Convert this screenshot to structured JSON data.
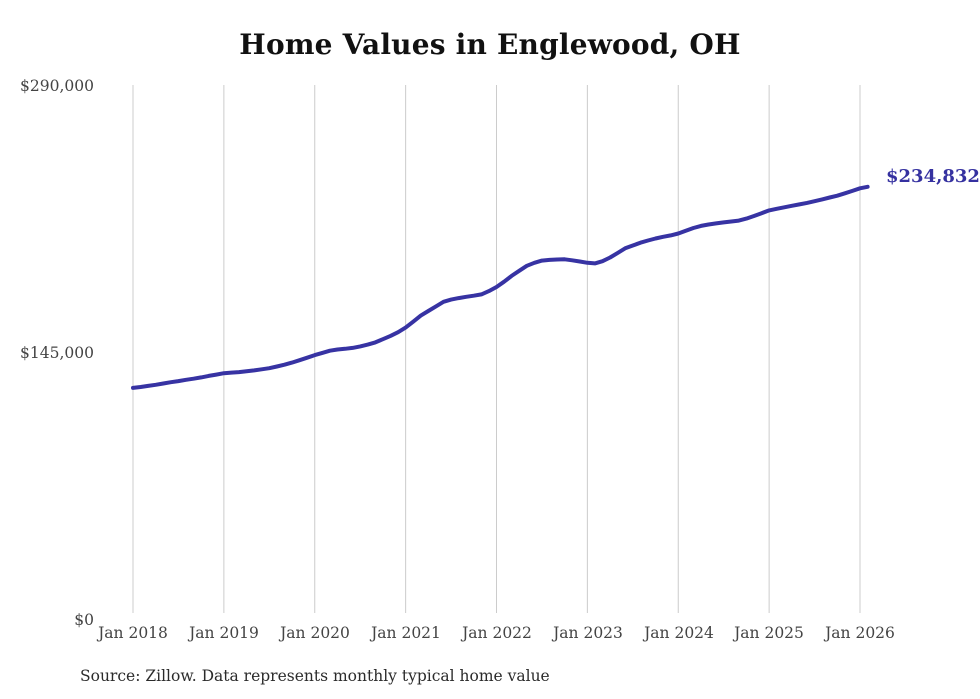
{
  "title": "Home Values in Englewood, OH",
  "annotation": {
    "end_label": "$234,832"
  },
  "source": "Source: Zillow. Data represents monthly typical home value",
  "colors": {
    "line": "#3733a3",
    "grid": "#cccccc",
    "title_text": "#111111",
    "tick_text": "#444444",
    "end_label_text": "#3531a0",
    "background": "#ffffff"
  },
  "chart_data": {
    "type": "line",
    "title": "Home Values in Englewood, OH",
    "xlabel": "",
    "ylabel": "",
    "ylim": [
      0,
      290000
    ],
    "grid": "vertical-only",
    "legend": "none",
    "y_tick_labels": [
      "$0",
      "$145,000",
      "$290,000"
    ],
    "y_tick_values": [
      0,
      145000,
      290000
    ],
    "x_tick_labels": [
      "Jan 2018",
      "Jan 2019",
      "Jan 2020",
      "Jan 2021",
      "Jan 2022",
      "Jan 2023",
      "Jan 2024",
      "Jan 2025",
      "Jan 2026"
    ],
    "series": [
      {
        "name": "Monthly typical home value",
        "final_value": 234832,
        "final_value_label": "$234,832",
        "months": [
          "2018-01",
          "2018-02",
          "2018-03",
          "2018-04",
          "2018-05",
          "2018-06",
          "2018-07",
          "2018-08",
          "2018-09",
          "2018-10",
          "2018-11",
          "2018-12",
          "2019-01",
          "2019-02",
          "2019-03",
          "2019-04",
          "2019-05",
          "2019-06",
          "2019-07",
          "2019-08",
          "2019-09",
          "2019-10",
          "2019-11",
          "2019-12",
          "2020-01",
          "2020-02",
          "2020-03",
          "2020-04",
          "2020-05",
          "2020-06",
          "2020-07",
          "2020-08",
          "2020-09",
          "2020-10",
          "2020-11",
          "2020-12",
          "2021-01",
          "2021-02",
          "2021-03",
          "2021-04",
          "2021-05",
          "2021-06",
          "2021-07",
          "2021-08",
          "2021-09",
          "2021-10",
          "2021-11",
          "2021-12",
          "2022-01",
          "2022-02",
          "2022-03",
          "2022-04",
          "2022-05",
          "2022-06",
          "2022-07",
          "2022-08",
          "2022-09",
          "2022-10",
          "2022-11",
          "2022-12",
          "2023-01",
          "2023-02",
          "2023-03",
          "2023-04",
          "2023-05",
          "2023-06",
          "2023-07",
          "2023-08",
          "2023-09",
          "2023-10",
          "2023-11",
          "2023-12",
          "2024-01",
          "2024-02",
          "2024-03",
          "2024-04",
          "2024-05",
          "2024-06",
          "2024-07",
          "2024-08",
          "2024-09",
          "2024-10",
          "2024-11",
          "2024-12",
          "2025-01",
          "2025-02",
          "2025-03",
          "2025-04",
          "2025-05",
          "2025-06",
          "2025-07",
          "2025-08",
          "2025-09",
          "2025-10",
          "2025-11",
          "2025-12",
          "2026-01",
          "2026-02"
        ],
        "values": [
          125800,
          126300,
          126900,
          127500,
          128200,
          128900,
          129500,
          130200,
          130800,
          131500,
          132300,
          133000,
          133800,
          134100,
          134400,
          134800,
          135300,
          135900,
          136500,
          137400,
          138400,
          139500,
          140800,
          142200,
          143600,
          144800,
          146000,
          146600,
          147000,
          147500,
          148300,
          149300,
          150500,
          152200,
          154000,
          156000,
          158500,
          161700,
          165000,
          167500,
          170000,
          172500,
          173700,
          174500,
          175200,
          175800,
          176500,
          178300,
          180500,
          183400,
          186500,
          189300,
          192000,
          193600,
          194800,
          195200,
          195400,
          195500,
          195000,
          194300,
          193600,
          193300,
          194500,
          196500,
          199000,
          201500,
          203000,
          204500,
          205700,
          206800,
          207700,
          208500,
          209500,
          211000,
          212500,
          213600,
          214400,
          215000,
          215500,
          216000,
          216500,
          217600,
          219000,
          220500,
          222000,
          222900,
          223700,
          224500,
          225300,
          226100,
          227000,
          228000,
          229000,
          230000,
          231300,
          232600,
          234000,
          234832
        ]
      }
    ]
  }
}
